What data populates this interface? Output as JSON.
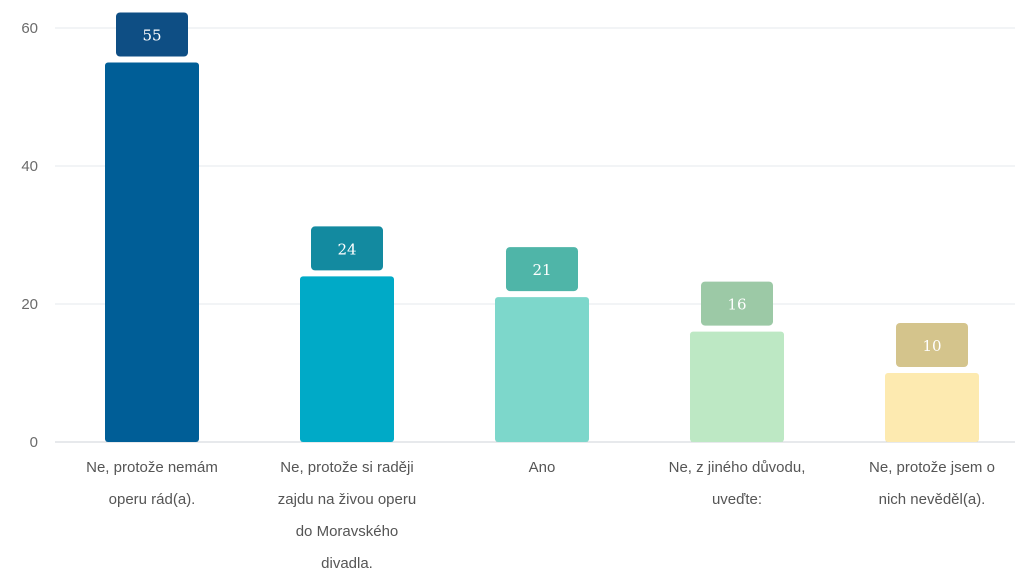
{
  "chart_data": {
    "type": "bar",
    "categories": [
      [
        "Ne, protože nemám",
        "operu rád(a)."
      ],
      [
        "Ne, protože si raději",
        "zajdu na živou operu",
        "do Moravského",
        "divadla."
      ],
      [
        "Ano"
      ],
      [
        "Ne, z jiného důvodu,",
        "uveďte:"
      ],
      [
        "Ne, protože jsem o",
        "nich nevěděl(a)."
      ]
    ],
    "values": [
      55,
      24,
      21,
      16,
      10
    ],
    "bar_colors": [
      "#005e97",
      "#00aac7",
      "#7dd7cb",
      "#bde8c4",
      "#fdeab0"
    ],
    "label_colors": [
      "#0e4e84",
      "#138aa0",
      "#4fb5a8",
      "#9cc9a6",
      "#d4c48c"
    ],
    "yticks": [
      "0",
      "20",
      "40",
      "60"
    ],
    "ylim": [
      0,
      60
    ],
    "grid": true
  }
}
